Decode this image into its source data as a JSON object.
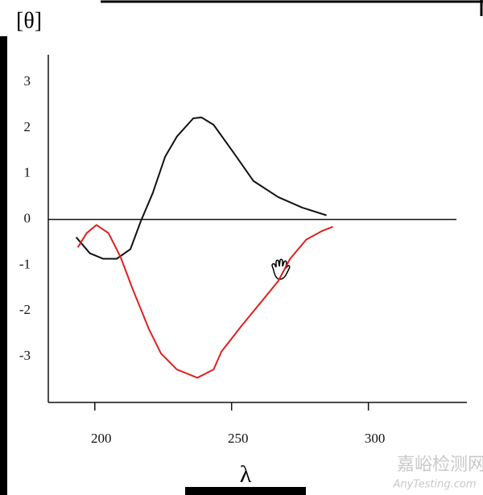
{
  "chart_data": {
    "type": "line",
    "y_label": "[θ]",
    "x_label": "λ",
    "xlim": [
      183,
      336
    ],
    "ylim": [
      -4,
      3.6
    ],
    "xticks": [
      200,
      250,
      300
    ],
    "yticks": [
      -3,
      -2,
      -1,
      0,
      1,
      2,
      3
    ],
    "series": [
      {
        "color": "#111111",
        "x": [
          193.2,
          198.2,
          203,
          208,
          213,
          216.8,
          221.2,
          225.7,
          230,
          236,
          239,
          243.4,
          250.7,
          258,
          267,
          275.8,
          284.7
        ],
        "values": [
          -0.39,
          -0.74,
          -0.86,
          -0.86,
          -0.65,
          -0.04,
          0.58,
          1.37,
          1.81,
          2.21,
          2.23,
          2.07,
          1.46,
          0.84,
          0.49,
          0.26,
          0.09
        ]
      },
      {
        "color": "#e0201c",
        "x": [
          193.8,
          197,
          200.6,
          205,
          209.4,
          213.9,
          219.8,
          224.2,
          230,
          237.5,
          243.4,
          246.3,
          253.7,
          261,
          267,
          271.4,
          277.3,
          283.2,
          287
        ],
        "values": [
          -0.61,
          -0.3,
          -0.12,
          -0.3,
          -0.82,
          -1.53,
          -2.4,
          -2.93,
          -3.28,
          -3.46,
          -3.28,
          -2.89,
          -2.32,
          -1.79,
          -1.35,
          -0.86,
          -0.44,
          -0.25,
          -0.16
        ]
      }
    ]
  },
  "watermark": {
    "title": "嘉峪检测网",
    "url": "AnyTesting.com"
  }
}
